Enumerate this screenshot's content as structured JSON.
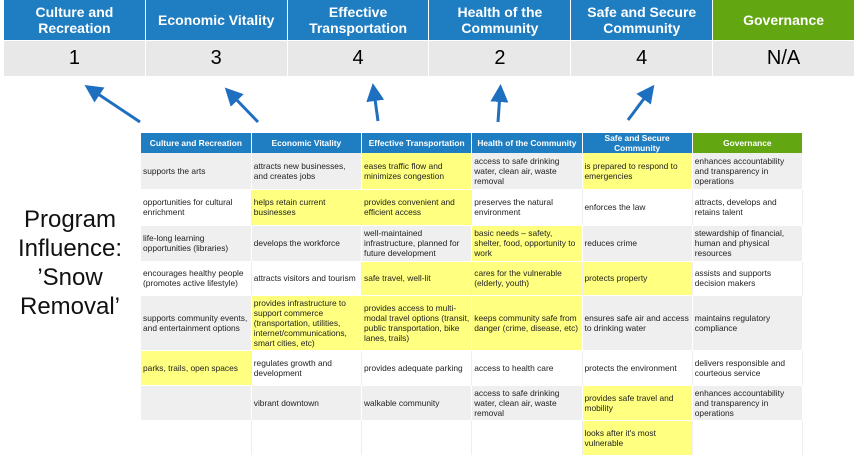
{
  "colors": {
    "blue": "#1f7dc2",
    "green": "#62a712",
    "highlight": "#ffff80",
    "arrow": "#1f6fc0"
  },
  "summary": [
    {
      "label": "Culture and Recreation",
      "score": "1",
      "color": "#1f7dc2"
    },
    {
      "label": "Economic Vitality",
      "score": "3",
      "color": "#1f7dc2"
    },
    {
      "label": "Effective Transportation",
      "score": "4",
      "color": "#1f7dc2"
    },
    {
      "label": "Health of the Community",
      "score": "2",
      "color": "#1f7dc2"
    },
    {
      "label": "Safe and Secure Community",
      "score": "4",
      "color": "#1f7dc2"
    },
    {
      "label": "Governance",
      "score": "N/A",
      "color": "#62a712"
    }
  ],
  "side_label": "Program Influence: ’Snow Removal’",
  "table": {
    "headers": [
      "Culture and Recreation",
      "Economic Vitality",
      "Effective Transportation",
      "Health of the Community",
      "Safe and Secure Community",
      "Governance"
    ],
    "rows": [
      {
        "cells": [
          "supports the arts",
          "attracts new businesses, and creates jobs",
          "eases traffic flow and minimizes congestion",
          "access to safe drinking water, clean air, waste removal",
          "is prepared to respond to emergencies",
          "enhances accountability and transparency in operations"
        ],
        "highlighted": [
          false,
          false,
          true,
          false,
          true,
          false
        ]
      },
      {
        "cells": [
          "opportunities for cultural enrichment",
          "helps retain current businesses",
          "provides convenient and efficient access",
          "preserves the natural environment",
          "enforces the law",
          "attracts, develops and retains talent"
        ],
        "highlighted": [
          false,
          true,
          true,
          false,
          false,
          false
        ]
      },
      {
        "cells": [
          "life-long learning opportunities (libraries)",
          "develops the workforce",
          "well-maintained infrastructure, planned for future development",
          "basic needs – safety, shelter, food, opportunity to work",
          "reduces crime",
          "stewardship of financial, human and physical resources"
        ],
        "highlighted": [
          false,
          false,
          false,
          true,
          false,
          false
        ]
      },
      {
        "cells": [
          "encourages healthy people (promotes active lifestyle)",
          "attracts visitors and tourism",
          "safe travel, well-lit",
          "cares for the vulnerable (elderly, youth)",
          "protects property",
          "assists and supports decision makers"
        ],
        "highlighted": [
          false,
          false,
          true,
          true,
          true,
          false
        ]
      },
      {
        "cells": [
          "supports community events, and entertainment options",
          "provides infrastructure to support commerce (transportation, utilities, internet/communications, smart cities, etc)",
          "provides access to multi-modal travel options (transit, public transportation, bike lanes, trails)",
          "keeps community safe from danger (crime, disease, etc)",
          "ensures safe air and access to drinking water",
          "maintains regulatory compliance"
        ],
        "highlighted": [
          false,
          true,
          true,
          true,
          false,
          false
        ]
      },
      {
        "cells": [
          "parks, trails, open spaces",
          "regulates growth and development",
          "provides adequate parking",
          "access to health care",
          "protects the environment",
          "delivers responsible and courteous service"
        ],
        "highlighted": [
          true,
          false,
          false,
          false,
          false,
          false
        ]
      },
      {
        "cells": [
          "",
          "vibrant downtown",
          "walkable community",
          "access to safe drinking water, clean air, waste removal",
          "provides safe travel and mobility",
          "enhances accountability and transparency in operations"
        ],
        "highlighted": [
          false,
          false,
          false,
          false,
          true,
          false
        ]
      },
      {
        "cells": [
          "",
          "",
          "",
          "",
          "looks after it's most vulnerable",
          ""
        ],
        "highlighted": [
          false,
          false,
          false,
          false,
          true,
          false
        ]
      }
    ]
  }
}
